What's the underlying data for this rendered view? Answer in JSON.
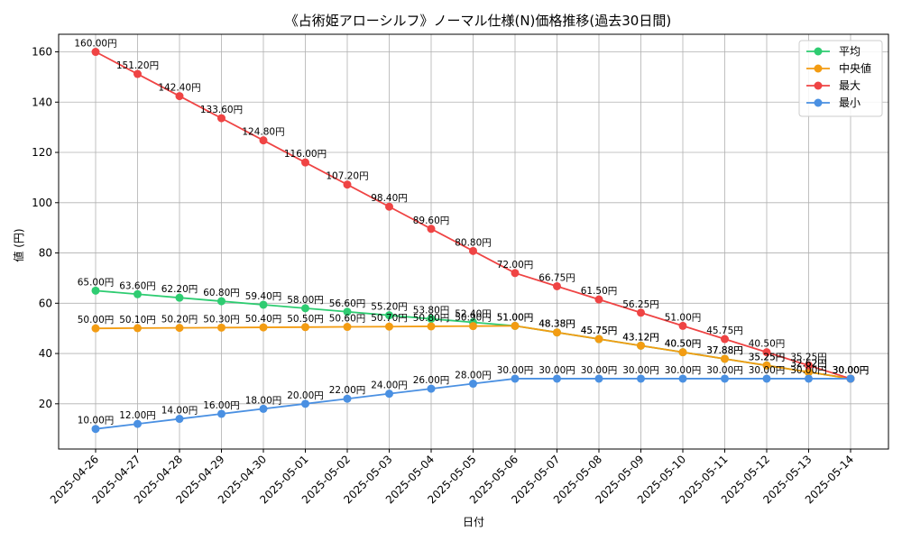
{
  "chart_data": {
    "type": "line",
    "title": "《占術姫アローシルフ》ノーマル仕様(N)価格推移(過去30日間)",
    "xlabel": "日付",
    "ylabel": "値 (円)",
    "ylim": [
      2,
      167
    ],
    "yticks": [
      20,
      40,
      60,
      80,
      100,
      120,
      140,
      160
    ],
    "grid": true,
    "legend_position": "top-right",
    "value_suffix": "円",
    "categories": [
      "2025-04-26",
      "2025-04-27",
      "2025-04-28",
      "2025-04-29",
      "2025-04-30",
      "2025-05-01",
      "2025-05-02",
      "2025-05-03",
      "2025-05-04",
      "2025-05-05",
      "2025-05-06",
      "2025-05-07",
      "2025-05-08",
      "2025-05-09",
      "2025-05-10",
      "2025-05-11",
      "2025-05-12",
      "2025-05-13",
      "2025-05-14"
    ],
    "series": [
      {
        "name": "平均",
        "color": "#2ecc71",
        "values": [
          65.0,
          63.6,
          62.2,
          60.8,
          59.4,
          58.0,
          56.6,
          55.2,
          53.8,
          52.4,
          51.0,
          48.38,
          45.75,
          43.12,
          40.5,
          37.88,
          35.25,
          32.62,
          30.0
        ]
      },
      {
        "name": "中央値",
        "color": "#f39c12",
        "values": [
          50.0,
          50.1,
          50.2,
          50.3,
          50.4,
          50.5,
          50.6,
          50.7,
          50.8,
          50.9,
          51.0,
          48.38,
          45.75,
          43.12,
          40.5,
          37.88,
          35.25,
          32.62,
          30.0
        ]
      },
      {
        "name": "最大",
        "color": "#ef4444",
        "values": [
          160.0,
          151.2,
          142.4,
          133.6,
          124.8,
          116.0,
          107.2,
          98.4,
          89.6,
          80.8,
          72.0,
          66.75,
          61.5,
          56.25,
          51.0,
          45.75,
          40.5,
          35.25,
          30.0
        ]
      },
      {
        "name": "最小",
        "color": "#4a90e2",
        "values": [
          10.0,
          12.0,
          14.0,
          16.0,
          18.0,
          20.0,
          22.0,
          24.0,
          26.0,
          28.0,
          30.0,
          30.0,
          30.0,
          30.0,
          30.0,
          30.0,
          30.0,
          30.0,
          30.0
        ]
      }
    ]
  }
}
